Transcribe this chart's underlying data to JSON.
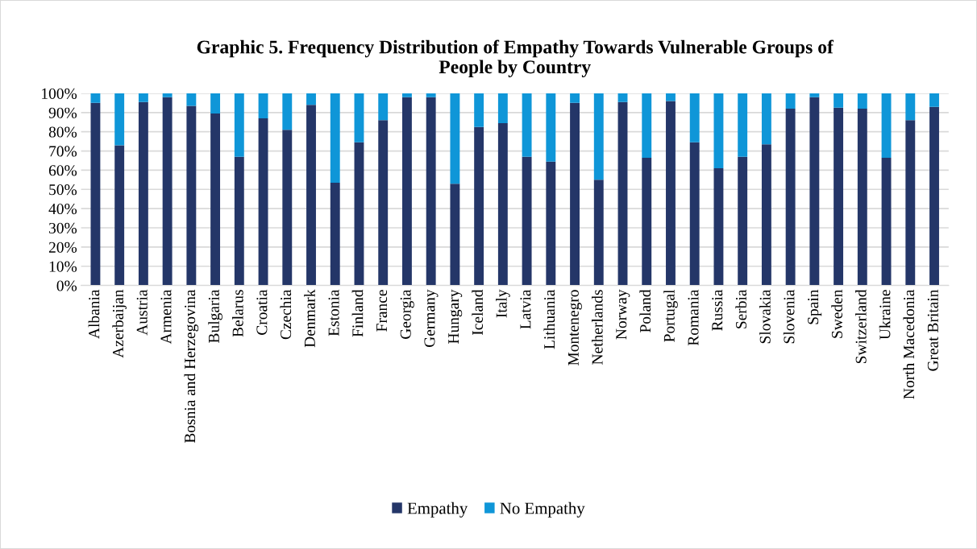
{
  "chart_data": {
    "type": "bar",
    "title": "Graphic 5. Frequency Distribution of Empathy Towards Vulnerable Groups of\nPeople by Country",
    "stacked": true,
    "categories": [
      "Albania",
      "Azerbaijan",
      "Austria",
      "Armenia",
      "Bosnia and Herzegovina",
      "Bulgaria",
      "Belarus",
      "Croatia",
      "Czechia",
      "Denmark",
      "Estonia",
      "Finland",
      "France",
      "Georgia",
      "Germany",
      "Hungary",
      "Iceland",
      "Italy",
      "Latvia",
      "Lithuania",
      "Montenegro",
      "Netherlands",
      "Norway",
      "Poland",
      "Portugal",
      "Romania",
      "Russia",
      "Serbia",
      "Slovakia",
      "Slovenia",
      "Spain",
      "Sweden",
      "Switzerland",
      "Ukraine",
      "North Macedonia",
      "Great Britain"
    ],
    "series": [
      {
        "name": "Empathy",
        "color": "#243668",
        "values": [
          95,
          73,
          95.5,
          98,
          93.5,
          89.5,
          67,
          87,
          81,
          94,
          53.5,
          74.5,
          86,
          98,
          98,
          53,
          82.5,
          84.5,
          67,
          64.5,
          95,
          55,
          95.5,
          66.5,
          96,
          74.5,
          61,
          67,
          73.5,
          92,
          98,
          92.5,
          92,
          66.5,
          86,
          93
        ]
      },
      {
        "name": "No Empathy",
        "color": "#0f96d8",
        "values": [
          5,
          27,
          4.5,
          2,
          6.5,
          10.5,
          33,
          13,
          19,
          6,
          46.5,
          25.5,
          14,
          2,
          2,
          47,
          17.5,
          15.5,
          33,
          35.5,
          5,
          45,
          4.5,
          33.5,
          4,
          25.5,
          39,
          33,
          26.5,
          8,
          2,
          7.5,
          8,
          33.5,
          14,
          7
        ]
      }
    ],
    "ylim": [
      0,
      100
    ],
    "yticks": [
      {
        "value": 0,
        "label": "0%"
      },
      {
        "value": 10,
        "label": "10%"
      },
      {
        "value": 20,
        "label": "20%"
      },
      {
        "value": 30,
        "label": "30%"
      },
      {
        "value": 40,
        "label": "40%"
      },
      {
        "value": 50,
        "label": "50%"
      },
      {
        "value": 60,
        "label": "60%"
      },
      {
        "value": 70,
        "label": "70%"
      },
      {
        "value": 80,
        "label": "80%"
      },
      {
        "value": 90,
        "label": "90%"
      },
      {
        "value": 100,
        "label": "100%"
      }
    ],
    "grid": "y",
    "legend": "bottom"
  }
}
